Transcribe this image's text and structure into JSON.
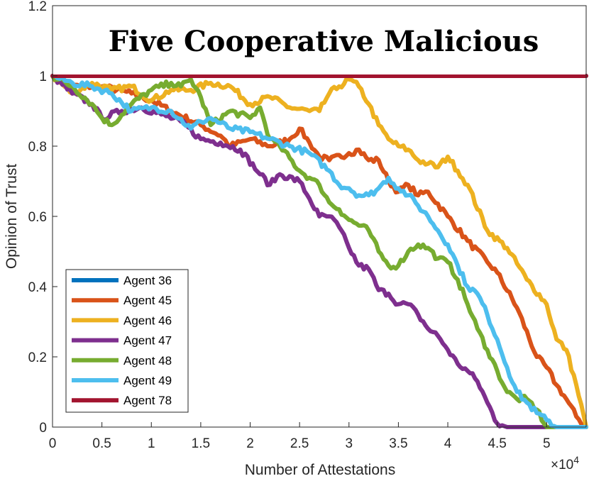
{
  "chart_data": {
    "type": "line",
    "title": "Five Cooperative Malicious",
    "xlabel": "Number of Attestations",
    "ylabel": "Opinion of Trust",
    "x_exponent": "×10",
    "x_exponent_power": "4",
    "xlim": [
      0,
      54000
    ],
    "ylim": [
      0,
      1.2
    ],
    "xticks": [
      0,
      5000,
      10000,
      15000,
      20000,
      25000,
      30000,
      35000,
      40000,
      45000,
      50000
    ],
    "xtick_labels": [
      "0",
      "0.5",
      "1",
      "1.5",
      "2",
      "2.5",
      "3",
      "3.5",
      "4",
      "4.5",
      "5"
    ],
    "yticks": [
      0,
      0.2,
      0.4,
      0.6,
      0.8,
      1,
      1.2
    ],
    "ytick_labels": [
      "0",
      "0.2",
      "0.4",
      "0.6",
      "0.8",
      "1",
      "1.2"
    ],
    "grid": false,
    "legend_position": "bottom-left",
    "series": [
      {
        "name": "Agent 36",
        "color": "#0072BD",
        "x": [
          0,
          54000
        ],
        "y": [
          1.0,
          1.0
        ]
      },
      {
        "name": "Agent 45",
        "color": "#D95319",
        "x": [
          0,
          2000,
          5000,
          8000,
          10000,
          12000,
          15000,
          17000,
          18000,
          20000,
          22000,
          24000,
          25000,
          26000,
          27000,
          28000,
          30000,
          31000,
          32000,
          33000,
          34000,
          35000,
          36000,
          37000,
          38000,
          40000,
          42000,
          44000,
          45000,
          47000,
          49000,
          50000,
          51000,
          52000,
          53000,
          54000
        ],
        "y": [
          1.0,
          0.97,
          0.97,
          0.95,
          0.93,
          0.9,
          0.86,
          0.83,
          0.8,
          0.82,
          0.8,
          0.82,
          0.85,
          0.81,
          0.77,
          0.76,
          0.78,
          0.79,
          0.76,
          0.76,
          0.7,
          0.67,
          0.69,
          0.66,
          0.67,
          0.6,
          0.53,
          0.47,
          0.44,
          0.34,
          0.2,
          0.17,
          0.12,
          0.08,
          0.03,
          0.0
        ]
      },
      {
        "name": "Agent 46",
        "color": "#EDB120",
        "x": [
          0,
          2000,
          4000,
          6000,
          8000,
          10000,
          12000,
          14000,
          16000,
          18000,
          20000,
          22000,
          24000,
          26000,
          27000,
          28000,
          29000,
          30000,
          31000,
          32000,
          33000,
          34000,
          35000,
          36000,
          37000,
          38000,
          39000,
          40000,
          41000,
          42000,
          44000,
          46000,
          48000,
          50000,
          51000,
          52000,
          53000,
          54000
        ],
        "y": [
          1.0,
          0.95,
          0.98,
          0.96,
          0.97,
          0.93,
          0.96,
          0.96,
          0.98,
          0.97,
          0.92,
          0.94,
          0.91,
          0.9,
          0.9,
          0.95,
          0.97,
          0.99,
          0.97,
          0.92,
          0.86,
          0.82,
          0.8,
          0.79,
          0.76,
          0.75,
          0.74,
          0.77,
          0.73,
          0.69,
          0.56,
          0.51,
          0.42,
          0.35,
          0.25,
          0.22,
          0.12,
          0.0
        ]
      },
      {
        "name": "Agent 47",
        "color": "#7E2F8E",
        "x": [
          0,
          2000,
          4000,
          5000,
          7000,
          9000,
          11000,
          13000,
          15000,
          17000,
          19000,
          21000,
          22000,
          23000,
          25000,
          26000,
          27000,
          28000,
          29000,
          30000,
          31000,
          32000,
          33000,
          34000,
          35000,
          36000,
          37000,
          38000,
          39000,
          40000,
          41000,
          42000,
          43000,
          44000,
          45000,
          46000,
          48000,
          50000,
          54000
        ],
        "y": [
          1.0,
          0.95,
          0.92,
          0.88,
          0.9,
          0.91,
          0.89,
          0.87,
          0.82,
          0.81,
          0.79,
          0.72,
          0.69,
          0.72,
          0.7,
          0.65,
          0.6,
          0.6,
          0.57,
          0.51,
          0.46,
          0.45,
          0.39,
          0.38,
          0.35,
          0.35,
          0.32,
          0.28,
          0.26,
          0.22,
          0.18,
          0.16,
          0.13,
          0.07,
          0.01,
          0.0,
          0.0,
          0.0,
          0.0
        ]
      },
      {
        "name": "Agent 48",
        "color": "#77AC30",
        "x": [
          0,
          2000,
          4000,
          5000,
          6000,
          8000,
          10000,
          12000,
          13000,
          14000,
          15000,
          16000,
          18000,
          20000,
          21000,
          22000,
          23000,
          25000,
          26000,
          27000,
          28000,
          29000,
          30000,
          32000,
          33000,
          34000,
          35000,
          36000,
          37000,
          38000,
          39000,
          40000,
          41000,
          42000,
          43000,
          44000,
          45000,
          46000,
          47000,
          48000,
          49000,
          50000,
          51000,
          54000
        ],
        "y": [
          1.0,
          0.97,
          0.92,
          0.88,
          0.86,
          0.92,
          0.96,
          0.98,
          0.97,
          0.99,
          0.94,
          0.86,
          0.9,
          0.88,
          0.91,
          0.82,
          0.8,
          0.73,
          0.71,
          0.69,
          0.64,
          0.62,
          0.59,
          0.56,
          0.5,
          0.46,
          0.46,
          0.5,
          0.52,
          0.51,
          0.48,
          0.47,
          0.42,
          0.35,
          0.28,
          0.22,
          0.16,
          0.1,
          0.08,
          0.08,
          0.05,
          0.0,
          0.0,
          0.0
        ]
      },
      {
        "name": "Agent 49",
        "color": "#4DBEEE",
        "x": [
          0,
          2000,
          4000,
          6000,
          8000,
          10000,
          12000,
          14000,
          15000,
          16000,
          18000,
          20000,
          22000,
          24000,
          26000,
          28000,
          29000,
          30000,
          31000,
          32000,
          33000,
          34000,
          35000,
          36000,
          37000,
          38000,
          39000,
          40000,
          41000,
          42000,
          43000,
          44000,
          45000,
          46000,
          47000,
          48000,
          49000,
          50000,
          51000,
          52000,
          54000
        ],
        "y": [
          1.0,
          0.98,
          0.97,
          0.95,
          0.9,
          0.91,
          0.9,
          0.85,
          0.87,
          0.88,
          0.85,
          0.84,
          0.82,
          0.8,
          0.78,
          0.73,
          0.69,
          0.68,
          0.66,
          0.66,
          0.68,
          0.71,
          0.68,
          0.66,
          0.63,
          0.6,
          0.56,
          0.52,
          0.46,
          0.4,
          0.38,
          0.32,
          0.25,
          0.17,
          0.1,
          0.07,
          0.04,
          0.02,
          0.0,
          0.0,
          0.0
        ]
      },
      {
        "name": "Agent 78",
        "color": "#A2142F",
        "x": [
          0,
          54000
        ],
        "y": [
          1.0,
          1.0
        ]
      }
    ]
  }
}
